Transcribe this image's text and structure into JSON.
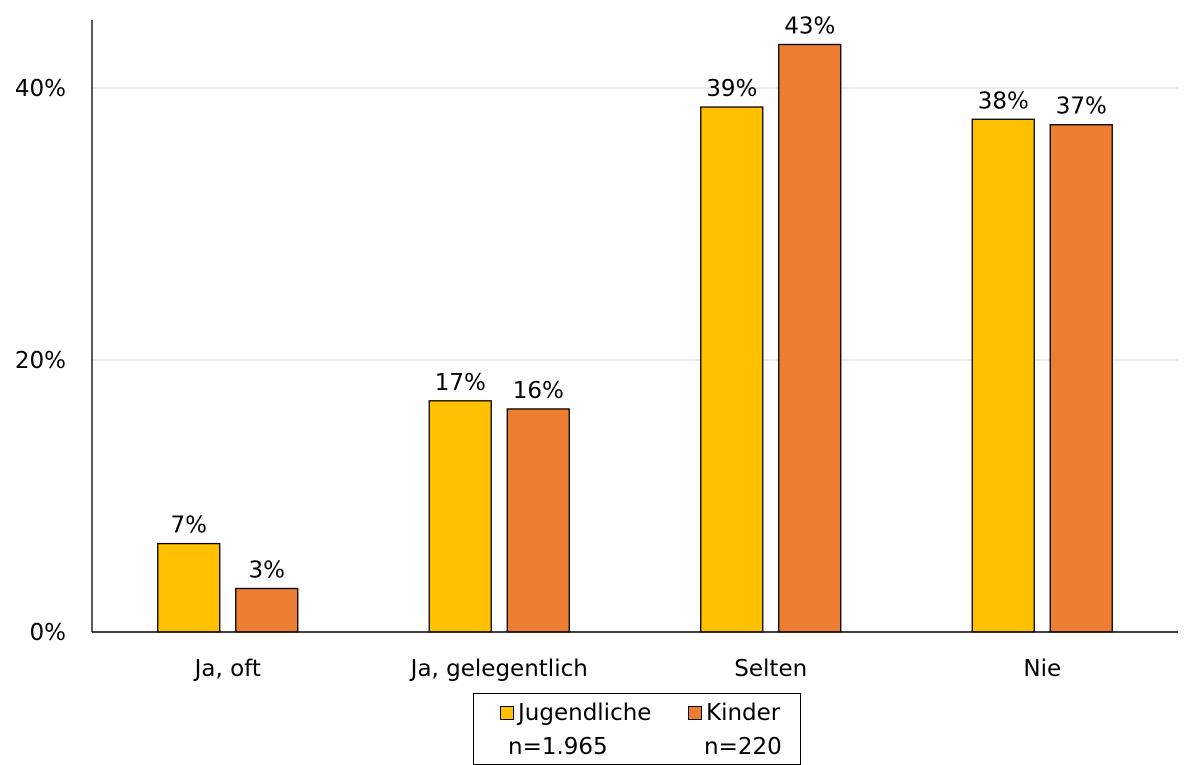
{
  "chart_data": {
    "type": "bar",
    "categories": [
      "Ja, oft",
      "Ja, gelegentlich",
      "Selten",
      "Nie"
    ],
    "series": [
      {
        "name": "Jugendliche",
        "n_label": "n=1.965",
        "color": "#FFC000",
        "values": [
          6.5,
          17.0,
          38.6,
          37.7
        ],
        "labels": [
          "7%",
          "17%",
          "39%",
          "38%"
        ]
      },
      {
        "name": "Kinder",
        "n_label": "n=220",
        "color": "#ED7D31",
        "values": [
          3.2,
          16.4,
          43.2,
          37.3
        ],
        "labels": [
          "3%",
          "16%",
          "43%",
          "37%"
        ]
      }
    ],
    "y_ticks": [
      {
        "value": 0,
        "label": "0%"
      },
      {
        "value": 20,
        "label": "20%"
      },
      {
        "value": 40,
        "label": "40%"
      }
    ],
    "ylim": [
      0,
      45
    ],
    "grid": true,
    "legend_position": "bottom-center"
  }
}
